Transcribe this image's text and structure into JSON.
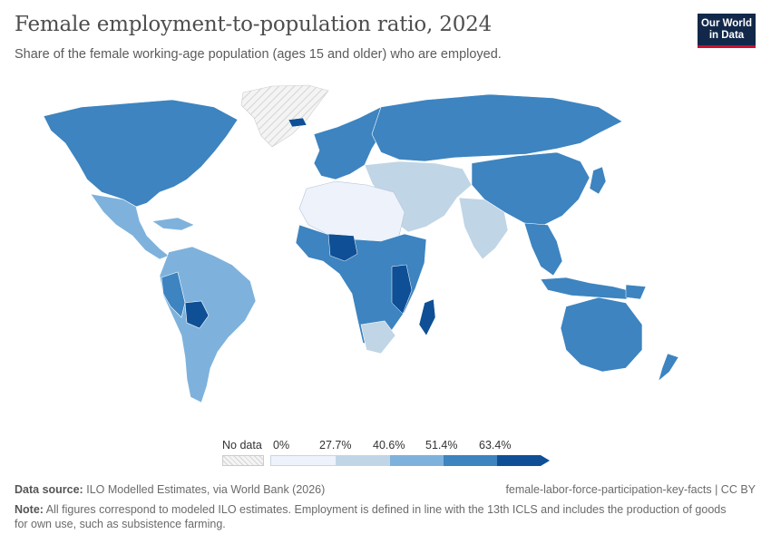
{
  "header": {
    "title": "Female employment-to-population ratio, 2024",
    "subtitle": "Share of the female working-age population (ages 15 and older) who are employed."
  },
  "logo": {
    "line1": "Our World",
    "line2": "in Data"
  },
  "legend": {
    "no_data_label": "No data",
    "ticks": [
      "0%",
      "27.7%",
      "40.6%",
      "51.4%",
      "63.4%"
    ],
    "colors": [
      "#eef2fb",
      "#c0d5e6",
      "#7eb2dc",
      "#3d84c0",
      "#0f4f96"
    ],
    "no_data_color": "#e0e0e0"
  },
  "footer": {
    "source_label": "Data source:",
    "source_text": "ILO Modelled Estimates, via World Bank (2026)",
    "license": "female-labor-force-participation-key-facts | CC BY",
    "note_label": "Note:",
    "note_text": "All figures correspond to modeled ILO estimates. Employment is defined in line with the 13th ICLS and includes the production of goods for own use, such as subsistence farming."
  },
  "map": {
    "colors": {
      "ocean": "#ffffff",
      "border": "#ffffff",
      "outline": "#b5b5b5"
    }
  }
}
